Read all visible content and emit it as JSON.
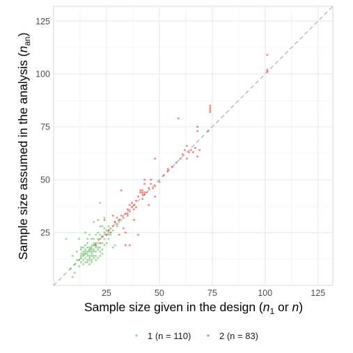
{
  "chart_data": {
    "type": "scatter",
    "xlabel_parts": [
      "Sample size given in the design (",
      "n",
      "1",
      " or ",
      "n",
      ")"
    ],
    "ylabel_parts": [
      "Sample size assumed in the analysis (",
      "n",
      "an",
      ")"
    ],
    "xlim": [
      0,
      132
    ],
    "ylim": [
      0,
      132
    ],
    "x_ticks": [
      25,
      50,
      75,
      100,
      125
    ],
    "y_ticks": [
      25,
      50,
      75,
      100,
      125
    ],
    "grid": true,
    "reference_line": "identity (dashed)",
    "legend_position": "bottom",
    "series": [
      {
        "name": "1 (n = 110)",
        "color": "#4daf4a",
        "points": [
          [
            6,
            22
          ],
          [
            8,
            8
          ],
          [
            9,
            14
          ],
          [
            9,
            4
          ],
          [
            10,
            10
          ],
          [
            10,
            6
          ],
          [
            11,
            12
          ],
          [
            11,
            16
          ],
          [
            12,
            22
          ],
          [
            12,
            9
          ],
          [
            13,
            14
          ],
          [
            13,
            11
          ],
          [
            13,
            17
          ],
          [
            13,
            15
          ],
          [
            13,
            13
          ],
          [
            14,
            14
          ],
          [
            14,
            12
          ],
          [
            14,
            18
          ],
          [
            14,
            15
          ],
          [
            15,
            13
          ],
          [
            15,
            11
          ],
          [
            15,
            17
          ],
          [
            15,
            16
          ],
          [
            15,
            25
          ],
          [
            15,
            15
          ],
          [
            16,
            14
          ],
          [
            16,
            12
          ],
          [
            16,
            18
          ],
          [
            16,
            20
          ],
          [
            16,
            22
          ],
          [
            16,
            16
          ],
          [
            16,
            15
          ],
          [
            17,
            12
          ],
          [
            17,
            17
          ],
          [
            17,
            24
          ],
          [
            17,
            16
          ],
          [
            17,
            18
          ],
          [
            17,
            10
          ],
          [
            17,
            13
          ],
          [
            18,
            18
          ],
          [
            18,
            15
          ],
          [
            18,
            14
          ],
          [
            18,
            22
          ],
          [
            18,
            12
          ],
          [
            18,
            17
          ],
          [
            18,
            16
          ],
          [
            19,
            16
          ],
          [
            19,
            20
          ],
          [
            19,
            13
          ],
          [
            19,
            30
          ],
          [
            19,
            19
          ],
          [
            19,
            17
          ],
          [
            19,
            14
          ],
          [
            20,
            20
          ],
          [
            20,
            12
          ],
          [
            20,
            24
          ],
          [
            20,
            18
          ],
          [
            20,
            14
          ],
          [
            21,
            18
          ],
          [
            21,
            13
          ],
          [
            21,
            20
          ],
          [
            21,
            31
          ],
          [
            21,
            17
          ],
          [
            21,
            22
          ],
          [
            22,
            22
          ],
          [
            22,
            39
          ],
          [
            22,
            14
          ],
          [
            22,
            24
          ],
          [
            22,
            16
          ],
          [
            22,
            18
          ],
          [
            23,
            23
          ],
          [
            23,
            20
          ],
          [
            23,
            28
          ],
          [
            23,
            15
          ],
          [
            24,
            22
          ],
          [
            24,
            25
          ],
          [
            24,
            19
          ],
          [
            24,
            32
          ],
          [
            25,
            24
          ],
          [
            25,
            20
          ],
          [
            25,
            26
          ],
          [
            26,
            25
          ],
          [
            26,
            22
          ],
          [
            26,
            28
          ],
          [
            27,
            27
          ],
          [
            27,
            24
          ],
          [
            28,
            26
          ],
          [
            28,
            18
          ],
          [
            29,
            19
          ],
          [
            29,
            30
          ],
          [
            30,
            28
          ],
          [
            31,
            30
          ],
          [
            32,
            31
          ],
          [
            16,
            11
          ],
          [
            14,
            10
          ],
          [
            12,
            12
          ],
          [
            18,
            11
          ],
          [
            20,
            16
          ],
          [
            21,
            25
          ],
          [
            19,
            22
          ],
          [
            23,
            17
          ],
          [
            17,
            14
          ],
          [
            15,
            19
          ],
          [
            13,
            18
          ],
          [
            22,
            28
          ],
          [
            24,
            27
          ],
          [
            26,
            24
          ],
          [
            14,
            16
          ],
          [
            18,
            19
          ],
          [
            20,
            19
          ]
        ]
      },
      {
        "name": "2 (n = 83)",
        "color": "#e41a1c",
        "points": [
          [
            20,
            19
          ],
          [
            22,
            20
          ],
          [
            23,
            23
          ],
          [
            24,
            31
          ],
          [
            25,
            24
          ],
          [
            26,
            26
          ],
          [
            27,
            25
          ],
          [
            28,
            28
          ],
          [
            28,
            33
          ],
          [
            29,
            30
          ],
          [
            30,
            32
          ],
          [
            30,
            29
          ],
          [
            31,
            31
          ],
          [
            31,
            24
          ],
          [
            32,
            33
          ],
          [
            32,
            45
          ],
          [
            33,
            32
          ],
          [
            33,
            27
          ],
          [
            34,
            25
          ],
          [
            34,
            34
          ],
          [
            34,
            19
          ],
          [
            35,
            36
          ],
          [
            35,
            33
          ],
          [
            36,
            35
          ],
          [
            36,
            38
          ],
          [
            36,
            19
          ],
          [
            37,
            37
          ],
          [
            37,
            39
          ],
          [
            38,
            38
          ],
          [
            38,
            36
          ],
          [
            38,
            31
          ],
          [
            39,
            40
          ],
          [
            39,
            37
          ],
          [
            40,
            42
          ],
          [
            40,
            24
          ],
          [
            41,
            44
          ],
          [
            41,
            45
          ],
          [
            42,
            41
          ],
          [
            42,
            43
          ],
          [
            42,
            45
          ],
          [
            43,
            48
          ],
          [
            43,
            43
          ],
          [
            43,
            50
          ],
          [
            44,
            44
          ],
          [
            45,
            38
          ],
          [
            45,
            46
          ],
          [
            46,
            48
          ],
          [
            46,
            50
          ],
          [
            47,
            46
          ],
          [
            48,
            47
          ],
          [
            48,
            60
          ],
          [
            50,
            49
          ],
          [
            52,
            52
          ],
          [
            54,
            54
          ],
          [
            56,
            56
          ],
          [
            58,
            58
          ],
          [
            59,
            79
          ],
          [
            60,
            60
          ],
          [
            61,
            62
          ],
          [
            62,
            64
          ],
          [
            63,
            66
          ],
          [
            63,
            60
          ],
          [
            64,
            63
          ],
          [
            65,
            64
          ],
          [
            66,
            63
          ],
          [
            67,
            65
          ],
          [
            68,
            73
          ],
          [
            68,
            75
          ],
          [
            68,
            61
          ],
          [
            69,
            64
          ],
          [
            73,
            73
          ],
          [
            74,
            83
          ],
          [
            74,
            84
          ],
          [
            74,
            85
          ],
          [
            74,
            82
          ],
          [
            101,
            101
          ],
          [
            101,
            109
          ],
          [
            101,
            102
          ],
          [
            43,
            44
          ],
          [
            42,
            44
          ],
          [
            35,
            34
          ],
          [
            48,
            42
          ],
          [
            54,
            55
          ]
        ]
      }
    ]
  }
}
